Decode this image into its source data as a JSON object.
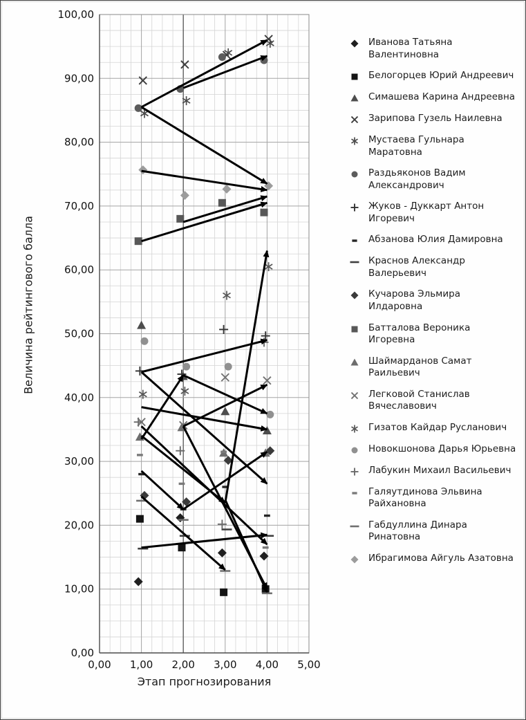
{
  "figure": {
    "background": "#fefefe",
    "border_color": "#3c3c3c",
    "grid_minor_color": "#d4d4d4",
    "grid_major_color": "#a3a3a3",
    "axis_color": "#4a4a4a",
    "arrow_color": "#000000"
  },
  "chart_data": {
    "type": "scatter",
    "title": "",
    "xlabel": "Этап прогнозирования",
    "ylabel": "Величина рейтингового балла",
    "xlim": [
      0,
      5
    ],
    "ylim": [
      0,
      100
    ],
    "x_ticks": [
      "0,00",
      "1,00",
      "2,00",
      "3,00",
      "4,00",
      "5,00"
    ],
    "y_ticks": [
      "0,00",
      "10,00",
      "20,00",
      "30,00",
      "40,00",
      "50,00",
      "60,00",
      "70,00",
      "80,00",
      "90,00",
      "100,00"
    ],
    "stages": [
      1,
      2,
      3,
      4
    ],
    "grid": {
      "minor_x_step": 0.25,
      "minor_y_step": 2.5,
      "major_x_step": 1,
      "major_y_step": 10,
      "emphasis_x": 2,
      "grid_on": true
    },
    "legend_position": "right",
    "series": [
      {
        "name": "Иванова Татьяна Валентиновна",
        "marker": "diamond",
        "color": "#1f1f1f",
        "values": [
          11,
          21,
          15.5,
          15
        ]
      },
      {
        "name": "Белогорцев Юрий Андреевич",
        "marker": "square",
        "color": "#141414",
        "values": [
          21,
          16.5,
          9.5,
          10
        ]
      },
      {
        "name": "Симашева Карина Андреевна",
        "marker": "triangle",
        "color": "#4d4d4d",
        "values": [
          51.5,
          43.5,
          38,
          35
        ]
      },
      {
        "name": "Зарипова Гузель Наилевна",
        "marker": "x",
        "color": "#3c3c3c",
        "values": [
          89.5,
          92,
          93.5,
          96
        ]
      },
      {
        "name": "Мустаева Гульнара Маратовна",
        "marker": "asterisk",
        "color": "#4a4a4a",
        "values": [
          84.5,
          86.5,
          94,
          95.5
        ]
      },
      {
        "name": "Раздьяконов Вадим Александрович",
        "marker": "circle",
        "color": "#5c5c5c",
        "values": [
          85.5,
          88.5,
          93.5,
          93
        ]
      },
      {
        "name": "Жуков - Дуккарт Антон Игоревич",
        "marker": "plus",
        "color": "#333333",
        "values": [
          44,
          43.5,
          50.5,
          49.5
        ]
      },
      {
        "name": "Абзанова Юлия Дамировна",
        "marker": "dash-short",
        "color": "#262626",
        "values": [
          28,
          22.5,
          26,
          21.5
        ]
      },
      {
        "name": "Краснов Александр Валерьевич",
        "marker": "dash-long",
        "color": "#3f3f3f",
        "values": [
          16.5,
          18.5,
          19.5,
          18.5
        ]
      },
      {
        "name": "Кучарова Эльмира Илдаровна",
        "marker": "diamond",
        "color": "#3a3a3a",
        "values": [
          24.5,
          23.5,
          30,
          31.5
        ]
      },
      {
        "name": "Батталова Вероника Игоревна",
        "marker": "square",
        "color": "#585858",
        "values": [
          64.5,
          68,
          70.5,
          69
        ]
      },
      {
        "name": "Шаймарданов Самат Раильевич",
        "marker": "triangle",
        "color": "#6d6d6d",
        "values": [
          34,
          35.5,
          31.5,
          31.5
        ]
      },
      {
        "name": "Легковой Станислав Вячеславович",
        "marker": "x",
        "color": "#717171",
        "values": [
          36,
          35.5,
          43,
          42.5
        ]
      },
      {
        "name": "Гизатов Кайдар Русланович",
        "marker": "asterisk",
        "color": "#565656",
        "values": [
          40.5,
          41,
          56,
          60.5
        ]
      },
      {
        "name": "Новокшонова Дарья Юрьевна",
        "marker": "circle",
        "color": "#909090",
        "values": [
          49,
          45,
          45,
          37.5
        ]
      },
      {
        "name": "Лабукин Михаил Васильевич",
        "marker": "plus",
        "color": "#6a6a6a",
        "values": [
          36,
          31.5,
          20,
          48.5
        ]
      },
      {
        "name": "Галяутдинова Эльвина Райхановна",
        "marker": "dash-short",
        "color": "#7a7a7a",
        "values": [
          31,
          26.5,
          31.5,
          16.5
        ]
      },
      {
        "name": "Габдуллина Динара Ринатовна",
        "marker": "dash-long",
        "color": "#6f6f6f",
        "values": [
          24,
          21,
          13,
          9.5
        ]
      },
      {
        "name": "Ибрагимова Айгуль Азатовна",
        "marker": "diamond",
        "color": "#9c9c9c",
        "values": [
          75.5,
          71.5,
          72.5,
          73
        ]
      }
    ],
    "arrows": [
      {
        "from": [
          1,
          85.5
        ],
        "to": [
          4,
          96
        ]
      },
      {
        "from": [
          2,
          88.5
        ],
        "to": [
          4,
          93.5
        ]
      },
      {
        "from": [
          1,
          85.5
        ],
        "to": [
          4,
          73.5
        ]
      },
      {
        "from": [
          1,
          75.5
        ],
        "to": [
          4,
          72.5
        ]
      },
      {
        "from": [
          1,
          64.5
        ],
        "to": [
          4,
          70.5
        ]
      },
      {
        "from": [
          2,
          67.5
        ],
        "to": [
          4,
          71.5
        ]
      },
      {
        "from": [
          3,
          23.5
        ],
        "to": [
          4,
          63
        ]
      },
      {
        "from": [
          1,
          44
        ],
        "to": [
          4,
          49
        ]
      },
      {
        "from": [
          1,
          44
        ],
        "to": [
          4,
          26.5
        ]
      },
      {
        "from": [
          2,
          35.5
        ],
        "to": [
          4,
          42
        ]
      },
      {
        "from": [
          1,
          38.5
        ],
        "to": [
          4,
          35
        ]
      },
      {
        "from": [
          1,
          33.5
        ],
        "to": [
          2,
          43.5
        ]
      },
      {
        "from": [
          2,
          43.5
        ],
        "to": [
          4,
          37.5
        ]
      },
      {
        "from": [
          1,
          35.5
        ],
        "to": [
          4,
          17
        ]
      },
      {
        "from": [
          1,
          34
        ],
        "to": [
          3,
          23.5
        ]
      },
      {
        "from": [
          2,
          35.5
        ],
        "to": [
          4,
          10
        ]
      },
      {
        "from": [
          1,
          28.5
        ],
        "to": [
          2,
          22.5
        ]
      },
      {
        "from": [
          2,
          22.5
        ],
        "to": [
          4,
          31.5
        ]
      },
      {
        "from": [
          1,
          24.5
        ],
        "to": [
          3,
          13
        ]
      },
      {
        "from": [
          3,
          24
        ],
        "to": [
          4,
          9.5
        ]
      },
      {
        "from": [
          1,
          16.5
        ],
        "to": [
          4,
          18.5
        ]
      }
    ]
  }
}
